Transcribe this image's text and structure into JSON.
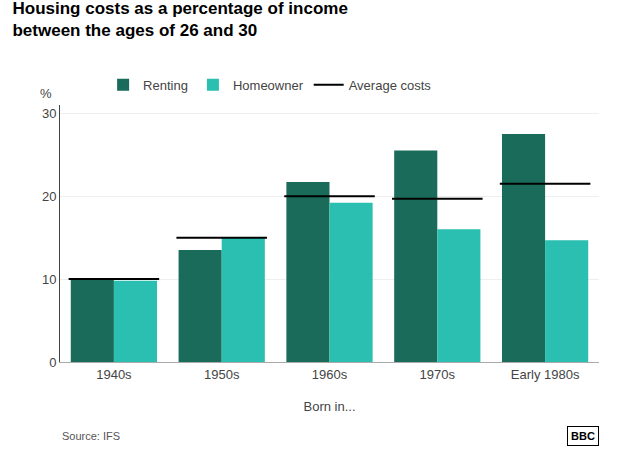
{
  "chart_data": {
    "type": "bar",
    "title": "Housing costs as a percentage of income",
    "subtitle": "between the ages of 26 and 30",
    "xlabel": "Born in...",
    "ylabel": "%",
    "categories": [
      "1940s",
      "1950s",
      "1960s",
      "1970s",
      "Early 1980s"
    ],
    "series": [
      {
        "name": "Renting",
        "type": "bar",
        "color": "#1a6b5a",
        "values": [
          10,
          13.5,
          21.7,
          25.5,
          27.5
        ]
      },
      {
        "name": "Homeowner",
        "type": "bar",
        "color": "#2abfb0",
        "values": [
          9.8,
          15,
          19.2,
          16,
          14.7
        ]
      },
      {
        "name": "Average costs",
        "type": "line",
        "color": "#000000",
        "values": [
          10,
          15,
          20,
          19.7,
          21.5
        ]
      }
    ],
    "ylim": [
      0,
      31
    ],
    "yticks": [
      0,
      10,
      20,
      30
    ],
    "grid": true,
    "legend": "top",
    "annotations": [
      "Source: IFS",
      "BBC"
    ]
  }
}
